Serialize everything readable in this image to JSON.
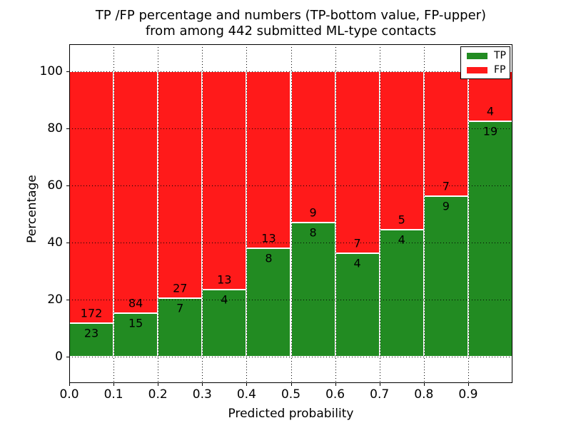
{
  "title": {
    "line1": "TP /FP percentage and numbers (TP-bottom value, FP-upper)",
    "line2": "from among 442 submitted ML-type contacts"
  },
  "axes": {
    "xlabel": "Predicted probability",
    "ylabel": "Percentage"
  },
  "legend": {
    "entries": [
      {
        "label": "TP",
        "color": "#228B22"
      },
      {
        "label": "FP",
        "color": "#ff1a1a"
      }
    ]
  },
  "chart_data": {
    "type": "bar",
    "stacked": true,
    "title": "TP /FP percentage and numbers (TP-bottom value, FP-upper)\nfrom among 442 submitted ML-type contacts",
    "xlabel": "Predicted probability",
    "ylabel": "Percentage",
    "total_contacts": 442,
    "bin_starts": [
      0.0,
      0.1,
      0.2,
      0.3,
      0.4,
      0.5,
      0.6,
      0.7,
      0.8,
      0.9
    ],
    "bin_width": 0.1,
    "series": [
      {
        "name": "TP",
        "color": "#228B22",
        "counts": [
          23,
          15,
          7,
          4,
          8,
          8,
          4,
          4,
          9,
          19
        ],
        "percent_of_bin": [
          11.79,
          15.15,
          20.59,
          23.53,
          38.1,
          47.06,
          36.36,
          44.44,
          56.25,
          82.61
        ]
      },
      {
        "name": "FP",
        "color": "#ff1a1a",
        "counts": [
          172,
          84,
          27,
          13,
          13,
          9,
          7,
          5,
          7,
          4
        ],
        "percent_of_bin": [
          88.21,
          84.85,
          79.41,
          76.47,
          61.9,
          52.94,
          63.64,
          55.56,
          43.75,
          17.39
        ]
      }
    ],
    "xticks": [
      {
        "value": 0.0,
        "label": "0.0"
      },
      {
        "value": 0.1,
        "label": "0.1"
      },
      {
        "value": 0.2,
        "label": "0.2"
      },
      {
        "value": 0.3,
        "label": "0.3"
      },
      {
        "value": 0.4,
        "label": "0.4"
      },
      {
        "value": 0.5,
        "label": "0.5"
      },
      {
        "value": 0.6,
        "label": "0.6"
      },
      {
        "value": 0.7,
        "label": "0.7"
      },
      {
        "value": 0.8,
        "label": "0.8"
      },
      {
        "value": 0.9,
        "label": "0.9"
      }
    ],
    "yticks": [
      {
        "value": 0,
        "label": "0"
      },
      {
        "value": 20,
        "label": "20"
      },
      {
        "value": 40,
        "label": "40"
      },
      {
        "value": 60,
        "label": "60"
      },
      {
        "value": 80,
        "label": "80"
      },
      {
        "value": 100,
        "label": "100"
      }
    ],
    "xlim": [
      0.0,
      1.0
    ],
    "ylim": [
      -9.25,
      109.5
    ],
    "grid": true,
    "grid_style": "dotted",
    "grid_xlines": [
      0.1,
      0.2,
      0.3,
      0.4,
      0.5,
      0.6,
      0.7,
      0.8,
      0.9
    ],
    "bar_edge_color": "#ffffff",
    "legend_position": "upper right"
  }
}
